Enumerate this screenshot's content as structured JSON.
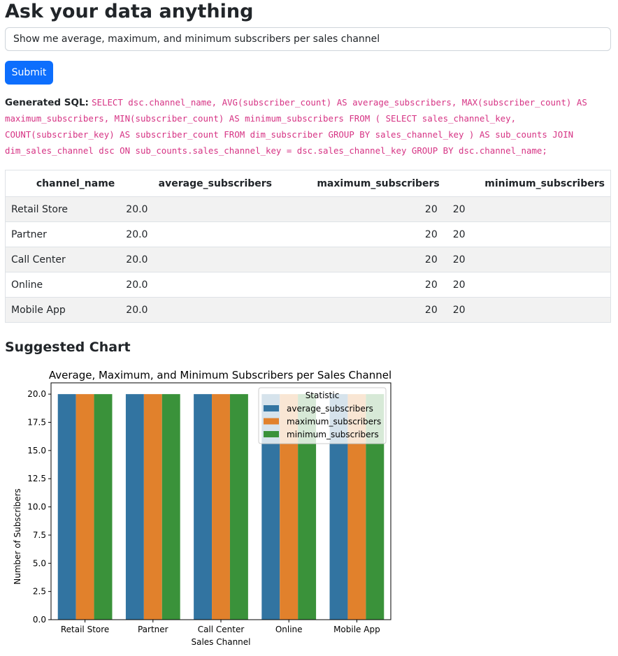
{
  "page": {
    "title": "Ask your data anything"
  },
  "question": {
    "value": "Show me average, maximum, and minimum subscribers per sales channel"
  },
  "submit_label": "Submit",
  "sql": {
    "label": "Generated SQL:",
    "query": "SELECT dsc.channel_name, AVG(subscriber_count) AS average_subscribers, MAX(subscriber_count) AS maximum_subscribers, MIN(subscriber_count) AS minimum_subscribers FROM ( SELECT sales_channel_key, COUNT(subscriber_key) AS subscriber_count FROM dim_subscriber GROUP BY sales_channel_key ) AS sub_counts JOIN dim_sales_channel dsc ON sub_counts.sales_channel_key = dsc.sales_channel_key GROUP BY dsc.channel_name;"
  },
  "table": {
    "columns": [
      "channel_name",
      "average_subscribers",
      "maximum_subscribers",
      "minimum_subscribers"
    ],
    "rows": [
      [
        "Retail Store",
        "20.0",
        "20",
        "20"
      ],
      [
        "Partner",
        "20.0",
        "20",
        "20"
      ],
      [
        "Call Center",
        "20.0",
        "20",
        "20"
      ],
      [
        "Online",
        "20.0",
        "20",
        "20"
      ],
      [
        "Mobile App",
        "20.0",
        "20",
        "20"
      ]
    ]
  },
  "suggested_chart_title": "Suggested Chart",
  "colors": {
    "primary_button": "#0d6efd",
    "sql_text": "#d63384",
    "series": [
      "#3274a1",
      "#e1812c",
      "#3a923a"
    ]
  },
  "chart_data": {
    "type": "bar",
    "title": "Average, Maximum, and Minimum Subscribers per Sales Channel",
    "xlabel": "Sales Channel",
    "ylabel": "Number of Subscribers",
    "ylim": [
      0,
      21
    ],
    "yticks": [
      "0.0",
      "2.5",
      "5.0",
      "7.5",
      "10.0",
      "12.5",
      "15.0",
      "17.5",
      "20.0"
    ],
    "categories": [
      "Retail Store",
      "Partner",
      "Call Center",
      "Online",
      "Mobile App"
    ],
    "series": [
      {
        "name": "average_subscribers",
        "values": [
          20,
          20,
          20,
          20,
          20
        ]
      },
      {
        "name": "maximum_subscribers",
        "values": [
          20,
          20,
          20,
          20,
          20
        ]
      },
      {
        "name": "minimum_subscribers",
        "values": [
          20,
          20,
          20,
          20,
          20
        ]
      }
    ],
    "legend": {
      "title": "Statistic",
      "position": "top-right"
    },
    "grid": false
  }
}
